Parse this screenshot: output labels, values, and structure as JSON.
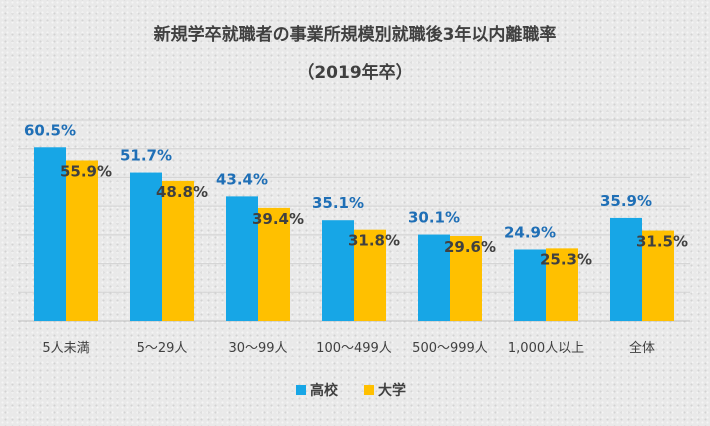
{
  "chart_data": {
    "type": "bar",
    "title": "新規学卒就職者の事業所規模別就職後3年以内離職率",
    "subtitle": "（2019年卒）",
    "categories": [
      "5人未満",
      "5～29人",
      "30～99人",
      "100～499人",
      "500～999人",
      "1,000人以上",
      "全体"
    ],
    "series": [
      {
        "name": "高校",
        "color": "#17A6E6",
        "label_color": "#1F6FB6",
        "values": [
          60.5,
          51.7,
          43.4,
          35.1,
          30.1,
          24.9,
          35.9
        ],
        "labels": [
          "60.5%",
          "51.7%",
          "43.4%",
          "35.1%",
          "30.1%",
          "24.9%",
          "35.9%"
        ]
      },
      {
        "name": "大学",
        "color": "#FFC000",
        "label_color": "#404040",
        "values": [
          55.9,
          48.8,
          39.4,
          31.8,
          29.6,
          25.3,
          31.5
        ],
        "labels": [
          "55.9%",
          "48.8%",
          "39.4%",
          "31.8%",
          "29.6%",
          "25.3%",
          "31.5%"
        ]
      }
    ],
    "ylim": [
      0,
      70
    ],
    "grid": true,
    "legend_position": "bottom-center"
  }
}
